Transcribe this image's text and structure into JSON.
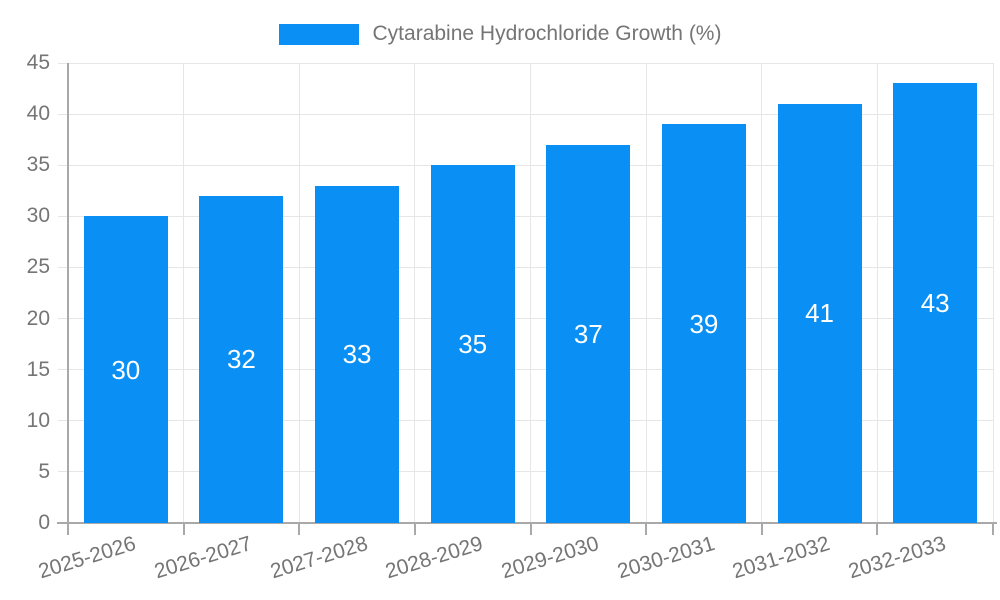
{
  "legend": {
    "label": "Cytarabine Hydrochloride Growth (%)"
  },
  "chart_data": {
    "type": "bar",
    "title": "Cytarabine Hydrochloride Growth (%)",
    "categories": [
      "2025-2026",
      "2026-2027",
      "2027-2028",
      "2028-2029",
      "2029-2030",
      "2030-2031",
      "2031-2032",
      "2032-2033"
    ],
    "values": [
      30,
      32,
      33,
      35,
      37,
      39,
      41,
      43
    ],
    "xlabel": "",
    "ylabel": "",
    "ylim": [
      0,
      45
    ],
    "ytick_step": 5,
    "yticks": [
      0,
      5,
      10,
      15,
      20,
      25,
      30,
      35,
      40,
      45
    ],
    "grid": "both",
    "legend_position": "top-center",
    "value_labels": "inside-middle",
    "x_label_rotation_deg": -17,
    "colors": {
      "bar": "#0A90F5",
      "value_label": "#FFFFFF",
      "tick_label": "#757575",
      "legend_text": "#757575",
      "gridline": "#E6E6E6",
      "axis_line": "#A9A9A9",
      "background": "#FFFFFF"
    }
  }
}
